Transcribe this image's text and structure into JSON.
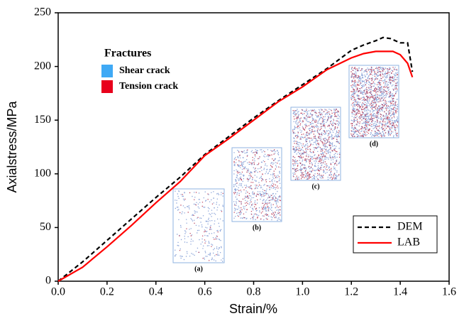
{
  "chart_data": {
    "type": "line",
    "xlabel": "Strain/%",
    "ylabel": "Axialstress/MPa",
    "xlim": [
      0,
      1.6
    ],
    "ylim": [
      0,
      250
    ],
    "xticks": [
      {
        "value": 0,
        "label": "0.0"
      },
      {
        "value": 0.2,
        "label": "0.2"
      },
      {
        "value": 0.4,
        "label": "0.4"
      },
      {
        "value": 0.6,
        "label": "0.6"
      },
      {
        "value": 0.8,
        "label": "0.8"
      },
      {
        "value": 1.0,
        "label": "1.0"
      },
      {
        "value": 1.2,
        "label": "1.2"
      },
      {
        "value": 1.4,
        "label": "1.4"
      },
      {
        "value": 1.6,
        "label": "1.6"
      }
    ],
    "yticks": [
      0,
      50,
      100,
      150,
      200,
      250
    ],
    "legend": "lower right",
    "series": [
      {
        "name": "DEM",
        "color": "#000000",
        "dash": true,
        "x": [
          0,
          0.1,
          0.2,
          0.3,
          0.4,
          0.5,
          0.6,
          0.7,
          0.8,
          0.9,
          1.0,
          1.1,
          1.2,
          1.25,
          1.3,
          1.33,
          1.36,
          1.4,
          1.43,
          1.45
        ],
        "values": [
          0,
          18,
          38,
          58,
          78,
          97,
          118,
          135,
          152,
          168,
          183,
          198,
          215,
          220,
          224,
          227,
          226,
          222,
          222,
          195
        ]
      },
      {
        "name": "LAB",
        "color": "#ff0000",
        "dash": false,
        "x": [
          0,
          0.1,
          0.2,
          0.3,
          0.4,
          0.5,
          0.6,
          0.7,
          0.8,
          0.9,
          1.0,
          1.1,
          1.2,
          1.25,
          1.3,
          1.37,
          1.4,
          1.43,
          1.45
        ],
        "values": [
          0,
          13,
          32,
          52,
          73,
          93,
          117,
          133,
          150,
          167,
          181,
          197,
          208,
          212,
          214,
          214,
          211,
          203,
          190
        ]
      }
    ],
    "annotations": [
      "(a)",
      "(b)",
      "(c)",
      "(d)"
    ],
    "fracture_legend": {
      "title": "Fractures",
      "items": [
        {
          "name": "Shear crack",
          "color": "#3fa9f5"
        },
        {
          "name": "Tension crack",
          "color": "#e8001c"
        }
      ]
    }
  }
}
